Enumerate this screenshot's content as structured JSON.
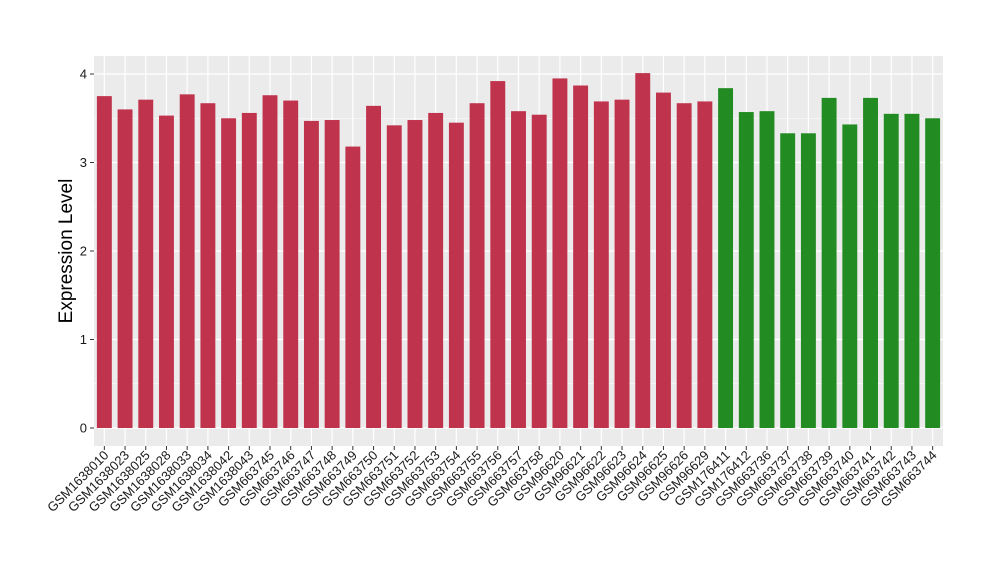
{
  "chart_data": {
    "type": "bar",
    "title": "",
    "xlabel": "",
    "ylabel": "Expression Level",
    "ylim": [
      0,
      4.0
    ],
    "yticks": [
      0,
      1,
      2,
      3,
      4
    ],
    "grid": true,
    "legend": "none",
    "background_color": "#ebebeb",
    "gridline_color": "#ffffff",
    "categories": [
      "GSM1638010",
      "GSM1638023",
      "GSM1638025",
      "GSM1638028",
      "GSM1638033",
      "GSM1638034",
      "GSM1638042",
      "GSM1638043",
      "GSM663745",
      "GSM663746",
      "GSM663747",
      "GSM663748",
      "GSM663749",
      "GSM663750",
      "GSM663751",
      "GSM663752",
      "GSM663753",
      "GSM663754",
      "GSM663755",
      "GSM663756",
      "GSM663757",
      "GSM663758",
      "GSM96620",
      "GSM96621",
      "GSM96622",
      "GSM96623",
      "GSM96624",
      "GSM96625",
      "GSM96626",
      "GSM96629",
      "GSM176411",
      "GSM176412",
      "GSM663736",
      "GSM663737",
      "GSM663738",
      "GSM663739",
      "GSM663740",
      "GSM663741",
      "GSM663742",
      "GSM663743",
      "GSM663744"
    ],
    "values": [
      3.75,
      3.6,
      3.71,
      3.53,
      3.77,
      3.67,
      3.5,
      3.56,
      3.76,
      3.7,
      3.47,
      3.48,
      3.18,
      3.64,
      3.42,
      3.48,
      3.56,
      3.45,
      3.67,
      3.92,
      3.58,
      3.54,
      3.95,
      3.87,
      3.69,
      3.71,
      4.01,
      3.79,
      3.67,
      3.69,
      3.84,
      3.57,
      3.58,
      3.33,
      3.33,
      3.73,
      3.43,
      3.73,
      3.55,
      3.55,
      3.5
    ],
    "bar_colors": [
      "#c0334d",
      "#c0334d",
      "#c0334d",
      "#c0334d",
      "#c0334d",
      "#c0334d",
      "#c0334d",
      "#c0334d",
      "#c0334d",
      "#c0334d",
      "#c0334d",
      "#c0334d",
      "#c0334d",
      "#c0334d",
      "#c0334d",
      "#c0334d",
      "#c0334d",
      "#c0334d",
      "#c0334d",
      "#c0334d",
      "#c0334d",
      "#c0334d",
      "#c0334d",
      "#c0334d",
      "#c0334d",
      "#c0334d",
      "#c0334d",
      "#c0334d",
      "#c0334d",
      "#c0334d",
      "#228b22",
      "#228b22",
      "#228b22",
      "#228b22",
      "#228b22",
      "#228b22",
      "#228b22",
      "#228b22",
      "#228b22",
      "#228b22",
      "#228b22"
    ]
  }
}
